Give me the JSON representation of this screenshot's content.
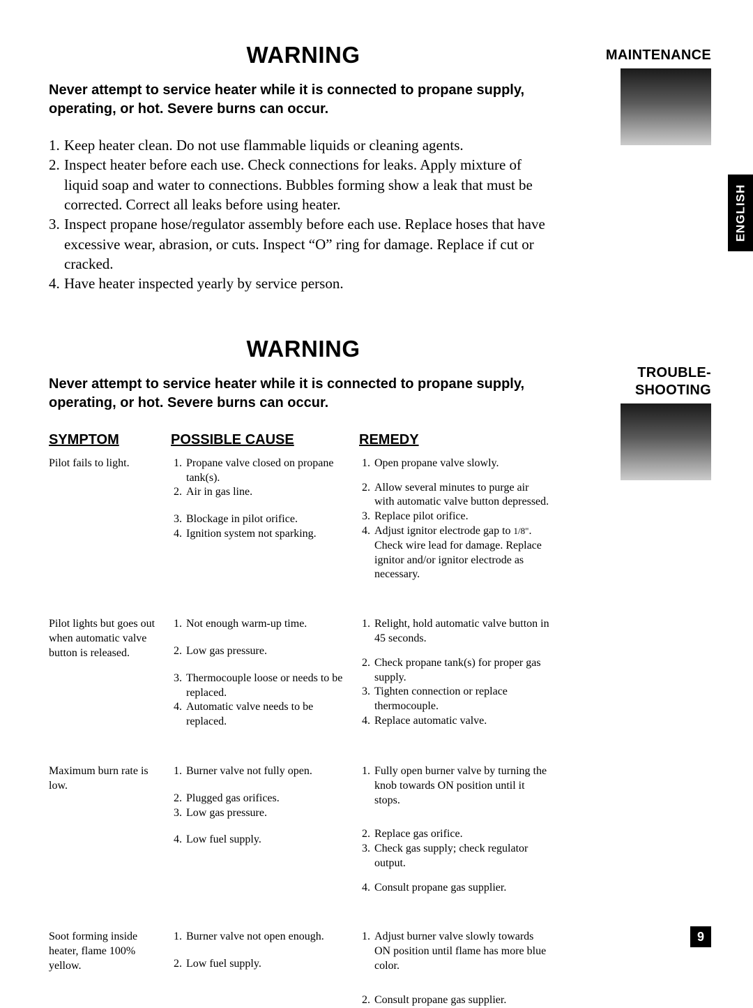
{
  "colors": {
    "background": "#ffffff",
    "text": "#000000",
    "tab_bg": "#000000",
    "tab_text": "#ffffff",
    "gradient_top": "#1a1a1a",
    "gradient_mid": "#5a5a5a",
    "gradient_bottom": "#cccccc"
  },
  "typography": {
    "heading_family": "Arial",
    "body_family": "Times New Roman",
    "warning_heading_pt": 33,
    "warning_text_pt": 20,
    "list_pt": 21,
    "table_header_pt": 20,
    "table_body_pt": 16,
    "sidebar_label_pt": 20
  },
  "sidebar": {
    "maintenance_label": "MAINTENANCE",
    "troubleshooting_label_1": "TROUBLE-",
    "troubleshooting_label_2": "SHOOTING",
    "language_tab": "ENGLISH",
    "page_number": "9"
  },
  "maintenance": {
    "heading": "WARNING",
    "warning_text": "Never attempt to service heater while it is connected to propane supply, operating, or hot. Severe burns can occur.",
    "items": [
      "Keep heater clean. Do not use flammable liquids or cleaning agents.",
      "Inspect heater before each use. Check connections for leaks. Apply mixture of liquid soap and water to connections. Bubbles forming show a leak that must be corrected. Correct all leaks before using heater.",
      "Inspect propane hose/regulator assembly before each use. Replace hoses that have excessive wear, abrasion, or cuts. Inspect “O” ring for damage. Replace if cut or cracked.",
      "Have heater inspected yearly by service person."
    ]
  },
  "troubleshooting": {
    "heading": "WARNING",
    "warning_text": "Never attempt to service heater while it is connected to propane supply, operating, or hot. Severe burns can occur.",
    "headers": {
      "symptom": "SYMPTOM",
      "cause": "POSSIBLE CAUSE",
      "remedy": "REMEDY"
    },
    "rows": [
      {
        "symptom": "Pilot fails to light.",
        "causes": [
          "Propane valve closed on propane tank(s).",
          "Air in gas line.",
          "Blockage in pilot orifice.",
          "Ignition system not sparking."
        ],
        "remedies": [
          "Open propane valve slowly.",
          "Allow several minutes to purge air with automatic valve button depressed.",
          "Replace pilot orifice.",
          "Adjust ignitor electrode gap to 1/8\". Check wire lead for damage. Replace ignitor and/or ignitor electrode as necessary."
        ]
      },
      {
        "symptom": "Pilot lights but goes out  when automatic valve button is released.",
        "causes": [
          "Not enough warm-up time.",
          "Low gas pressure.",
          "Thermocouple loose or needs to be replaced.",
          "Automatic valve needs to be replaced."
        ],
        "remedies": [
          "Relight, hold automatic valve button in 45 seconds.",
          "Check propane tank(s) for proper gas supply.",
          "Tighten connection or replace thermocouple.",
          "Replace automatic valve."
        ]
      },
      {
        "symptom": "Maximum burn rate is low.",
        "causes": [
          "Burner valve not fully open.",
          "Plugged gas orifices.",
          "Low gas pressure.",
          "Low fuel supply."
        ],
        "remedies": [
          "Fully open burner valve by turning the knob towards ON position until  it stops.",
          "Replace gas orifice.",
          "Check gas supply; check regulator output.",
          "Consult propane gas supplier."
        ]
      },
      {
        "symptom": "Soot forming inside heater, flame 100% yellow.",
        "causes": [
          "Burner valve not open enough.",
          "Low fuel supply."
        ],
        "remedies": [
          "Adjust burner valve slowly towards ON position until flame has more blue color.",
          "Consult propane gas supplier."
        ]
      }
    ]
  }
}
